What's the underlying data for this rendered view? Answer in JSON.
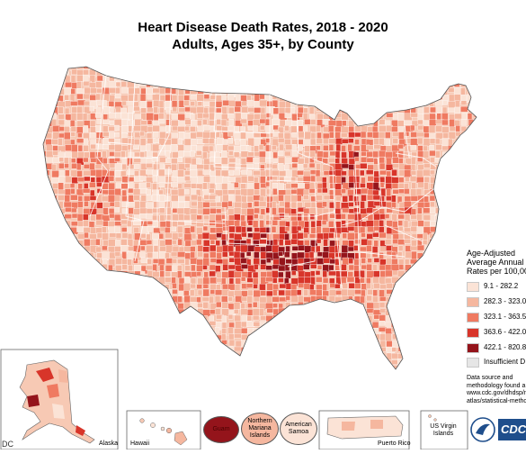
{
  "title_line1": "Heart Disease Death Rates, 2018 - 2020",
  "title_line2": "Adults, Ages 35+, by County",
  "legend": {
    "title_lines": [
      "Age-Adjusted",
      "Average Annual",
      "Rates per 100,00"
    ],
    "classes": [
      {
        "label": "9.1 - 282.2",
        "color": "#fbe3d6"
      },
      {
        "label": "282.3 - 323.0",
        "color": "#f5b79f"
      },
      {
        "label": "323.1 - 363.5",
        "color": "#ef7a61"
      },
      {
        "label": "363.6 - 422.0",
        "color": "#d8352a"
      },
      {
        "label": "422.1 - 820.8",
        "color": "#94141b"
      },
      {
        "label": "Insufficient D",
        "color": "#e6e6e6"
      }
    ]
  },
  "source_lines": [
    "Data source and",
    "methodology found a",
    "www.cdc.gov/dhdsp/m",
    "atlas/statistical-metho"
  ],
  "insets": {
    "alaska": "Alaska",
    "hawaii": "Hawaii",
    "guam": "Guam",
    "nmi": "Northern Mariana Islands",
    "samoa": "American Samoa",
    "puerto_rico": "Puerto Rico",
    "usvi": "US Virgin Islands"
  },
  "footer_left": "DC",
  "logo_text": "CDC",
  "colors": {
    "c1": "#fbe3d6",
    "c2": "#f5b79f",
    "c3": "#ef7a61",
    "c4": "#d8352a",
    "c5": "#94141b",
    "border": "#ffffff",
    "outline": "#555555"
  }
}
